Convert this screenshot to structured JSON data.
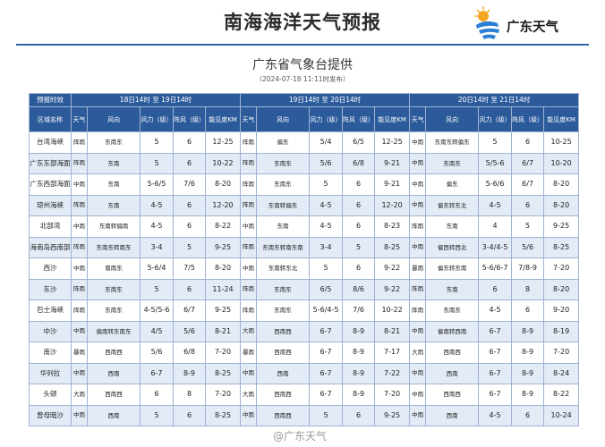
{
  "title": "南海海洋天气预报",
  "logo": {
    "text": "广东天气"
  },
  "subtitle": "广东省气象台提供",
  "issued": "（2024-07-18 11:11时发布）",
  "table": {
    "period_header": "预报时效",
    "periods": [
      "18日14时 至 19日14时",
      "19日14时 至 20日14时",
      "20日14时 至 21日14时"
    ],
    "area_header": "区域名称",
    "sub_headers": [
      "天气",
      "风向",
      "风力（级）",
      "阵风（级）",
      "能见度KM"
    ],
    "rows": [
      {
        "area": "台湾海峡",
        "cells": [
          [
            "阵雨",
            "东南东",
            "5",
            "6",
            "12-25"
          ],
          [
            "阵雨",
            "偏东",
            "5/4",
            "6/5",
            "12-25"
          ],
          [
            "中雨",
            "东南东转偏东",
            "5",
            "6",
            "10-25"
          ]
        ]
      },
      {
        "area": "广东东部海面",
        "cells": [
          [
            "阵雨",
            "东南",
            "5",
            "6",
            "10-22"
          ],
          [
            "阵雨",
            "东南东",
            "5/6",
            "6/8",
            "9-21"
          ],
          [
            "中雨",
            "东南东",
            "5/5-6",
            "6/7",
            "10-20"
          ]
        ]
      },
      {
        "area": "广东西部海面",
        "cells": [
          [
            "中雨",
            "东南",
            "5-6/5",
            "7/6",
            "8-20"
          ],
          [
            "阵雨",
            "东南东",
            "5",
            "6",
            "9-21"
          ],
          [
            "中雨",
            "偏东",
            "5-6/6",
            "6/7",
            "8-20"
          ]
        ]
      },
      {
        "area": "琼州海峡",
        "cells": [
          [
            "阵雨",
            "东南",
            "4-5",
            "6",
            "12-20"
          ],
          [
            "阵雨",
            "东南转偏东",
            "4-5",
            "6",
            "12-20"
          ],
          [
            "中雨",
            "偏东转东北",
            "4-5",
            "6",
            "8-20"
          ]
        ]
      },
      {
        "area": "北部湾",
        "cells": [
          [
            "中雨",
            "东南转偏南",
            "4-5",
            "6",
            "8-22"
          ],
          [
            "中雨",
            "东南",
            "4-5",
            "6",
            "8-23"
          ],
          [
            "阵雨",
            "东南",
            "4",
            "5",
            "9-25"
          ]
        ]
      },
      {
        "area": "海南岛西南部",
        "cells": [
          [
            "阵雨",
            "东南东转南东",
            "3-4",
            "5",
            "9-25"
          ],
          [
            "阵雨",
            "东南东转南东南",
            "3-4",
            "5",
            "8-25"
          ],
          [
            "中雨",
            "偏西转西北",
            "3-4/4-5",
            "5/6",
            "8-25"
          ]
        ]
      },
      {
        "area": "西沙",
        "cells": [
          [
            "中雨",
            "南南东",
            "5-6/4",
            "7/5",
            "8-20"
          ],
          [
            "中雨",
            "东南转东北",
            "5",
            "6",
            "9-22"
          ],
          [
            "暴雨",
            "偏东转东南",
            "5-6/6-7",
            "7/8-9",
            "7-20"
          ]
        ]
      },
      {
        "area": "东沙",
        "cells": [
          [
            "阵雨",
            "东南东",
            "5",
            "6",
            "11-24"
          ],
          [
            "阵雨",
            "东南东",
            "6/5",
            "8/6",
            "9-22"
          ],
          [
            "阵雨",
            "东南",
            "6",
            "8",
            "8-20"
          ]
        ]
      },
      {
        "area": "巴士海峡",
        "cells": [
          [
            "阵雨",
            "东南东",
            "4-5/5-6",
            "6/7",
            "9-25"
          ],
          [
            "阵雨",
            "东南东",
            "5-6/4-5",
            "7/6",
            "10-22"
          ],
          [
            "阵雨",
            "东南东",
            "4-5",
            "6",
            "9-20"
          ]
        ]
      },
      {
        "area": "中沙",
        "cells": [
          [
            "中雨",
            "偏南转东南东",
            "4/5",
            "5/6",
            "8-21"
          ],
          [
            "大雨",
            "西南西",
            "6-7",
            "8-9",
            "8-21"
          ],
          [
            "中雨",
            "偏南转西南",
            "6-7",
            "8-9",
            "8-19"
          ]
        ]
      },
      {
        "area": "南沙",
        "cells": [
          [
            "暴雨",
            "西南西",
            "5/6",
            "6/8",
            "7-20"
          ],
          [
            "暴雨",
            "西南西",
            "6-7",
            "8-9",
            "7-17"
          ],
          [
            "大雨",
            "西南西",
            "6-7",
            "8-9",
            "7-20"
          ]
        ]
      },
      {
        "area": "华列拉",
        "cells": [
          [
            "中雨",
            "西南",
            "6-7",
            "8-9",
            "8-25"
          ],
          [
            "中雨",
            "西南",
            "6-7",
            "8-9",
            "7-22"
          ],
          [
            "中雨",
            "西南",
            "6-7",
            "8-9",
            "8-24"
          ]
        ]
      },
      {
        "area": "头顿",
        "cells": [
          [
            "大雨",
            "西南西",
            "6",
            "8",
            "7-20"
          ],
          [
            "大雨",
            "西南西",
            "6-7",
            "8-9",
            "7-20"
          ],
          [
            "中雨",
            "西南西",
            "6-7",
            "8-9",
            "8-22"
          ]
        ]
      },
      {
        "area": "曾母暗沙",
        "cells": [
          [
            "中雨",
            "西南",
            "5",
            "6",
            "8-25"
          ],
          [
            "中雨",
            "西南西",
            "5",
            "6",
            "9-25"
          ],
          [
            "中雨",
            "西南",
            "4-5",
            "6",
            "10-24"
          ]
        ]
      }
    ]
  },
  "watermark": "@广东天气"
}
